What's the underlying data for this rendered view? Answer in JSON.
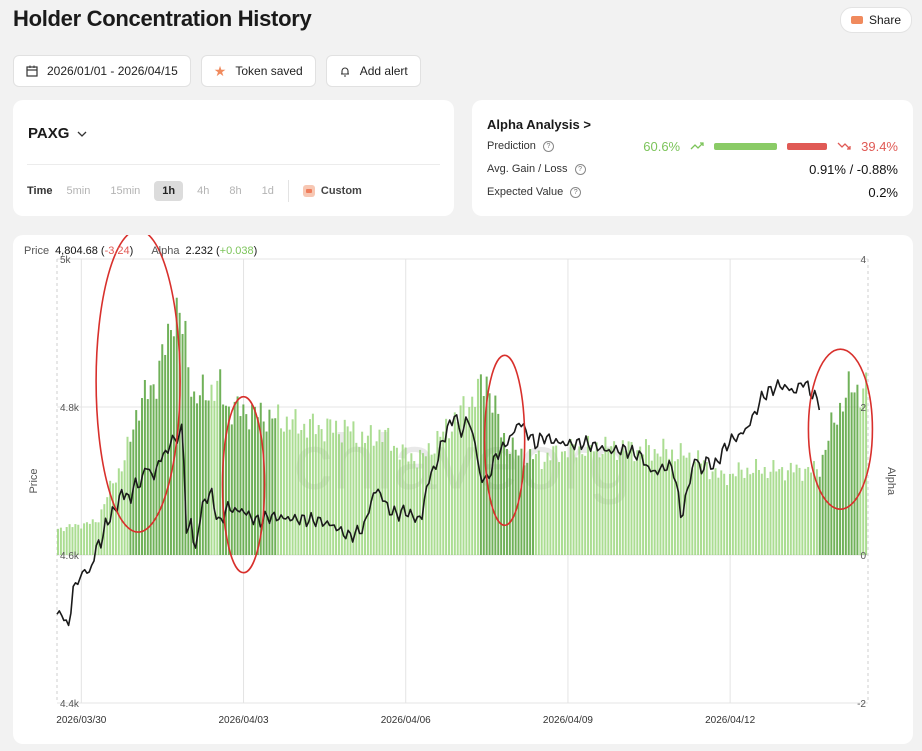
{
  "page": {
    "title": "Holder Concentration History",
    "share_label": "Share"
  },
  "toolbar": {
    "date_range": "2026/01/01 - 2026/04/15",
    "saved_label": "Token saved",
    "alert_label": "Add alert"
  },
  "token": {
    "symbol": "PAXG",
    "timeframe_label": "Time",
    "timeframes": [
      "5min",
      "15min",
      "1h",
      "4h",
      "8h",
      "1d"
    ],
    "active_timeframe": "1h",
    "custom_label": "Custom"
  },
  "alpha_analysis": {
    "title": "Alpha Analysis  >",
    "prediction_label": "Prediction",
    "prediction_up": "60.6%",
    "prediction_down": "39.4%",
    "gain_loss_label": "Avg. Gain / Loss",
    "gain_loss_value": "0.91% / -0.88%",
    "ev_label": "Expected Value",
    "ev_value": "0.2%"
  },
  "legend": {
    "price_label": "Price",
    "price_value": "4,804.68",
    "price_change": "-3.24",
    "alpha_label": "Alpha",
    "alpha_value": "2.232",
    "alpha_change": "+0.038"
  },
  "colors": {
    "bars": "#8fd16e",
    "bars_dark": "#57a33c",
    "line": "#1a1a1a",
    "circle": "#d8302c",
    "up": "#7cc45a",
    "down": "#e05a55"
  },
  "chart_data": {
    "type": "bar+line",
    "xlabel": "",
    "ylabel_left": "Price",
    "ylabel_right": "Alpha",
    "watermark": "chlaveorg",
    "price_axis": {
      "ylim": [
        4400,
        5000
      ],
      "ticks": [
        "4.4k",
        "4.6k",
        "4.8k",
        "5k"
      ],
      "tick_values": [
        4400,
        4600,
        4800,
        5000
      ]
    },
    "alpha_axis": {
      "ylim": [
        -2,
        4
      ],
      "ticks": [
        "-2",
        "0",
        "2",
        "4"
      ],
      "tick_values": [
        -2,
        0,
        2,
        4
      ]
    },
    "x_ticks": [
      "2026/03/30",
      "2026/04/03",
      "2026/04/06",
      "2026/04/09",
      "2026/04/12"
    ],
    "x_tick_positions": [
      0.03,
      0.23,
      0.43,
      0.63,
      0.83
    ],
    "alpha_series": [
      [
        0,
        0.35
      ],
      [
        0.05,
        0.45
      ],
      [
        0.07,
        1.0
      ],
      [
        0.085,
        1.3
      ],
      [
        0.1,
        2.0
      ],
      [
        0.12,
        2.3
      ],
      [
        0.14,
        3.0
      ],
      [
        0.145,
        3.4
      ],
      [
        0.15,
        3.3
      ],
      [
        0.16,
        2.8
      ],
      [
        0.17,
        2.1
      ],
      [
        0.2,
        2.3
      ],
      [
        0.21,
        2.0
      ],
      [
        0.25,
        1.9
      ],
      [
        0.3,
        1.75
      ],
      [
        0.36,
        1.7
      ],
      [
        0.38,
        1.55
      ],
      [
        0.4,
        1.65
      ],
      [
        0.43,
        1.35
      ],
      [
        0.45,
        1.3
      ],
      [
        0.52,
        2.2
      ],
      [
        0.53,
        2.4
      ],
      [
        0.55,
        1.6
      ],
      [
        0.57,
        1.35
      ],
      [
        0.6,
        1.3
      ],
      [
        0.62,
        1.4
      ],
      [
        0.66,
        1.45
      ],
      [
        0.7,
        1.45
      ],
      [
        0.75,
        1.4
      ],
      [
        0.79,
        1.3
      ],
      [
        0.82,
        1.05
      ],
      [
        0.85,
        1.15
      ],
      [
        0.94,
        1.15
      ],
      [
        0.955,
        1.7
      ],
      [
        0.97,
        2.1
      ],
      [
        0.98,
        2.25
      ],
      [
        1.0,
        2.232
      ]
    ],
    "price_series": [
      [
        0,
        4520
      ],
      [
        0.005,
        4525
      ],
      [
        0.01,
        4505
      ],
      [
        0.015,
        4510
      ],
      [
        0.02,
        4550
      ],
      [
        0.027,
        4575
      ],
      [
        0.03,
        4560
      ],
      [
        0.035,
        4590
      ],
      [
        0.04,
        4570
      ],
      [
        0.05,
        4620
      ],
      [
        0.055,
        4610
      ],
      [
        0.06,
        4650
      ],
      [
        0.065,
        4640
      ],
      [
        0.07,
        4670
      ],
      [
        0.075,
        4660
      ],
      [
        0.08,
        4690
      ],
      [
        0.085,
        4680
      ],
      [
        0.09,
        4670
      ],
      [
        0.095,
        4700
      ],
      [
        0.1,
        4690
      ],
      [
        0.11,
        4720
      ],
      [
        0.12,
        4705
      ],
      [
        0.13,
        4740
      ],
      [
        0.135,
        4730
      ],
      [
        0.14,
        4760
      ],
      [
        0.145,
        4750
      ],
      [
        0.15,
        4765
      ],
      [
        0.155,
        4770
      ],
      [
        0.16,
        4620
      ],
      [
        0.165,
        4650
      ],
      [
        0.17,
        4600
      ],
      [
        0.175,
        4640
      ],
      [
        0.18,
        4670
      ],
      [
        0.19,
        4685
      ],
      [
        0.2,
        4640
      ],
      [
        0.21,
        4665
      ],
      [
        0.22,
        4660
      ],
      [
        0.23,
        4660
      ],
      [
        0.24,
        4650
      ],
      [
        0.25,
        4645
      ],
      [
        0.26,
        4652
      ],
      [
        0.3,
        4648
      ],
      [
        0.32,
        4647
      ],
      [
        0.34,
        4640
      ],
      [
        0.36,
        4625
      ],
      [
        0.37,
        4630
      ],
      [
        0.38,
        4640
      ],
      [
        0.385,
        4665
      ],
      [
        0.39,
        4680
      ],
      [
        0.395,
        4690
      ],
      [
        0.4,
        4680
      ],
      [
        0.41,
        4660
      ],
      [
        0.42,
        4655
      ],
      [
        0.43,
        4660
      ],
      [
        0.44,
        4650
      ],
      [
        0.45,
        4650
      ],
      [
        0.455,
        4690
      ],
      [
        0.46,
        4705
      ],
      [
        0.47,
        4730
      ],
      [
        0.475,
        4755
      ],
      [
        0.48,
        4765
      ],
      [
        0.49,
        4790
      ],
      [
        0.5,
        4760
      ],
      [
        0.505,
        4790
      ],
      [
        0.51,
        4770
      ],
      [
        0.515,
        4760
      ],
      [
        0.52,
        4710
      ],
      [
        0.53,
        4700
      ],
      [
        0.535,
        4715
      ],
      [
        0.54,
        4730
      ],
      [
        0.545,
        4740
      ],
      [
        0.55,
        4745
      ],
      [
        0.56,
        4760
      ],
      [
        0.57,
        4780
      ],
      [
        0.58,
        4765
      ],
      [
        0.59,
        4750
      ],
      [
        0.6,
        4760
      ],
      [
        0.61,
        4755
      ],
      [
        0.62,
        4752
      ],
      [
        0.63,
        4750
      ],
      [
        0.64,
        4750
      ],
      [
        0.65,
        4752
      ],
      [
        0.66,
        4748
      ],
      [
        0.67,
        4745
      ],
      [
        0.68,
        4740
      ],
      [
        0.69,
        4742
      ],
      [
        0.7,
        4742
      ],
      [
        0.71,
        4738
      ],
      [
        0.72,
        4734
      ],
      [
        0.73,
        4715
      ],
      [
        0.74,
        4712
      ],
      [
        0.75,
        4720
      ],
      [
        0.76,
        4718
      ],
      [
        0.765,
        4685
      ],
      [
        0.77,
        4650
      ],
      [
        0.78,
        4700
      ],
      [
        0.785,
        4725
      ],
      [
        0.79,
        4732
      ],
      [
        0.795,
        4708
      ],
      [
        0.8,
        4730
      ],
      [
        0.81,
        4718
      ],
      [
        0.82,
        4738
      ],
      [
        0.83,
        4755
      ],
      [
        0.84,
        4760
      ],
      [
        0.85,
        4770
      ],
      [
        0.86,
        4790
      ],
      [
        0.87,
        4815
      ],
      [
        0.88,
        4822
      ],
      [
        0.89,
        4830
      ],
      [
        0.9,
        4826
      ],
      [
        0.91,
        4820
      ],
      [
        0.92,
        4835
      ],
      [
        0.93,
        4820
      ],
      [
        0.94,
        4805
      ]
    ],
    "highlight_regions": [
      {
        "center": 0.1,
        "span": [
          0.09,
          0.19
        ]
      },
      {
        "center": 0.23,
        "span": [
          0.2,
          0.27
        ]
      },
      {
        "center": 0.55,
        "span": [
          0.52,
          0.59
        ]
      },
      {
        "center": 0.96,
        "span": [
          0.94,
          0.99
        ]
      }
    ],
    "annotations": [
      "red ellipse around high-alpha cluster 1",
      "red ellipse around high-alpha cluster 2",
      "red ellipse around high-alpha cluster 3",
      "red ellipse around high-alpha cluster 4"
    ]
  }
}
